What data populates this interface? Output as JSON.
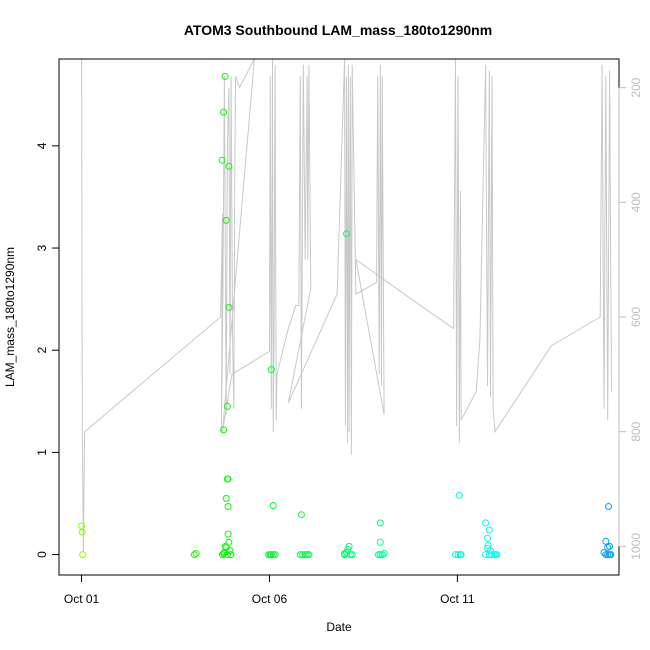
{
  "chart_data": {
    "type": "scatter",
    "title": "ATOM3 Southbound LAM_mass_180to1290nm",
    "xlabel": "Date",
    "ylabel": "LAM_mass_180to1290nm",
    "x_unit": "days since Oct 01",
    "xlim": [
      -0.6,
      14.3
    ],
    "ylim": [
      -0.2,
      4.85
    ],
    "y2lim": [
      1050,
      150
    ],
    "x_ticks": [
      {
        "value": 0,
        "label": "Oct 01"
      },
      {
        "value": 5,
        "label": "Oct 06"
      },
      {
        "value": 10,
        "label": "Oct 11"
      }
    ],
    "y_ticks": [
      0,
      1,
      2,
      3,
      4
    ],
    "y2_ticks": [
      200,
      400,
      600,
      800,
      1000
    ],
    "scatter_points": [
      [
        0.0,
        0.28
      ],
      [
        0.02,
        0.22
      ],
      [
        0.03,
        0.0
      ],
      [
        3.0,
        0.0
      ],
      [
        3.05,
        0.01
      ],
      [
        3.75,
        0.0
      ],
      [
        3.78,
        0.01
      ],
      [
        3.82,
        4.68
      ],
      [
        3.78,
        4.33
      ],
      [
        3.74,
        3.86
      ],
      [
        3.85,
        3.27
      ],
      [
        3.92,
        3.8
      ],
      [
        3.92,
        2.42
      ],
      [
        3.78,
        1.22
      ],
      [
        3.88,
        1.45
      ],
      [
        3.9,
        0.74
      ],
      [
        3.88,
        0.74
      ],
      [
        3.85,
        0.55
      ],
      [
        3.9,
        0.47
      ],
      [
        3.9,
        0.2
      ],
      [
        3.92,
        0.12
      ],
      [
        3.85,
        0.07
      ],
      [
        3.95,
        0.04
      ],
      [
        3.8,
        0.02
      ],
      [
        3.88,
        0.0
      ],
      [
        3.97,
        0.0
      ],
      [
        3.83,
        0.08
      ],
      [
        5.05,
        1.81
      ],
      [
        5.1,
        0.48
      ],
      [
        5.02,
        0.0
      ],
      [
        5.05,
        0.0
      ],
      [
        5.1,
        0.0
      ],
      [
        5.15,
        0.0
      ],
      [
        4.98,
        0.0
      ],
      [
        5.85,
        0.39
      ],
      [
        5.82,
        0.0
      ],
      [
        5.88,
        0.0
      ],
      [
        5.95,
        0.0
      ],
      [
        6.0,
        0.0
      ],
      [
        6.05,
        0.0
      ],
      [
        7.05,
        3.14
      ],
      [
        7.0,
        0.0
      ],
      [
        7.05,
        0.02
      ],
      [
        7.08,
        0.05
      ],
      [
        7.12,
        0.08
      ],
      [
        7.15,
        0.0
      ],
      [
        7.2,
        0.0
      ],
      [
        7.0,
        0.01
      ],
      [
        7.95,
        0.31
      ],
      [
        7.95,
        0.12
      ],
      [
        7.9,
        0.0
      ],
      [
        7.95,
        0.0
      ],
      [
        8.0,
        0.0
      ],
      [
        8.05,
        0.01
      ],
      [
        10.05,
        0.58
      ],
      [
        9.95,
        0.0
      ],
      [
        10.02,
        0.0
      ],
      [
        10.08,
        0.0
      ],
      [
        10.1,
        0.0
      ],
      [
        10.75,
        0.31
      ],
      [
        10.85,
        0.24
      ],
      [
        10.8,
        0.16
      ],
      [
        10.82,
        0.09
      ],
      [
        10.88,
        0.04
      ],
      [
        10.75,
        0.0
      ],
      [
        10.85,
        0.0
      ],
      [
        10.92,
        0.0
      ],
      [
        10.98,
        0.0
      ],
      [
        11.02,
        0.0
      ],
      [
        11.05,
        0.0
      ],
      [
        10.8,
        0.06
      ],
      [
        14.02,
        0.47
      ],
      [
        13.95,
        0.13
      ],
      [
        14.05,
        0.08
      ],
      [
        13.9,
        0.02
      ],
      [
        13.95,
        0.0
      ],
      [
        14.0,
        0.0
      ],
      [
        14.05,
        0.0
      ],
      [
        14.08,
        0.0
      ],
      [
        14.0,
        0.07
      ]
    ],
    "altitude_series": [
      [
        0.0,
        150
      ],
      [
        0.02,
        790
      ],
      [
        0.05,
        1010
      ],
      [
        0.08,
        800
      ],
      [
        3.7,
        600
      ],
      [
        3.75,
        420
      ],
      [
        3.72,
        800
      ],
      [
        3.76,
        560
      ],
      [
        3.8,
        180
      ],
      [
        3.85,
        770
      ],
      [
        3.88,
        300
      ],
      [
        3.92,
        200
      ],
      [
        3.95,
        700
      ],
      [
        3.98,
        180
      ],
      [
        4.02,
        640
      ],
      [
        4.05,
        760
      ],
      [
        4.08,
        320
      ],
      [
        4.1,
        180
      ],
      [
        4.2,
        200
      ],
      [
        4.6,
        150
      ],
      [
        3.75,
        800
      ],
      [
        4.0,
        700
      ],
      [
        5.0,
        660
      ],
      [
        5.02,
        180
      ],
      [
        5.05,
        760
      ],
      [
        5.08,
        150
      ],
      [
        5.1,
        800
      ],
      [
        5.12,
        640
      ],
      [
        5.15,
        160
      ],
      [
        5.18,
        780
      ],
      [
        5.2,
        700
      ],
      [
        5.5,
        620
      ],
      [
        5.7,
        580
      ],
      [
        5.78,
        580
      ],
      [
        5.82,
        180
      ],
      [
        5.85,
        760
      ],
      [
        5.9,
        160
      ],
      [
        5.95,
        500
      ],
      [
        6.0,
        180
      ],
      [
        6.02,
        500
      ],
      [
        6.05,
        160
      ],
      [
        6.1,
        550
      ],
      [
        5.5,
        750
      ],
      [
        6.8,
        560
      ],
      [
        7.0,
        150
      ],
      [
        7.02,
        790
      ],
      [
        7.05,
        180
      ],
      [
        7.08,
        820
      ],
      [
        7.1,
        160
      ],
      [
        7.12,
        800
      ],
      [
        7.15,
        180
      ],
      [
        7.18,
        840
      ],
      [
        7.2,
        160
      ],
      [
        7.3,
        560
      ],
      [
        7.85,
        540
      ],
      [
        7.88,
        180
      ],
      [
        7.92,
        700
      ],
      [
        7.95,
        160
      ],
      [
        7.98,
        720
      ],
      [
        8.0,
        180
      ],
      [
        8.05,
        770
      ],
      [
        7.3,
        500
      ],
      [
        8.8,
        570
      ],
      [
        9.9,
        620
      ],
      [
        9.95,
        150
      ],
      [
        9.98,
        790
      ],
      [
        10.02,
        180
      ],
      [
        10.05,
        820
      ],
      [
        10.08,
        380
      ],
      [
        10.1,
        780
      ],
      [
        10.5,
        730
      ],
      [
        10.6,
        640
      ],
      [
        10.75,
        160
      ],
      [
        10.8,
        720
      ],
      [
        10.85,
        170
      ],
      [
        10.88,
        740
      ],
      [
        10.92,
        180
      ],
      [
        10.95,
        760
      ],
      [
        11.0,
        800
      ],
      [
        12.5,
        650
      ],
      [
        13.8,
        600
      ],
      [
        13.85,
        160
      ],
      [
        13.9,
        760
      ],
      [
        13.95,
        180
      ],
      [
        14.0,
        780
      ],
      [
        14.05,
        170
      ],
      [
        14.1,
        730
      ]
    ]
  }
}
